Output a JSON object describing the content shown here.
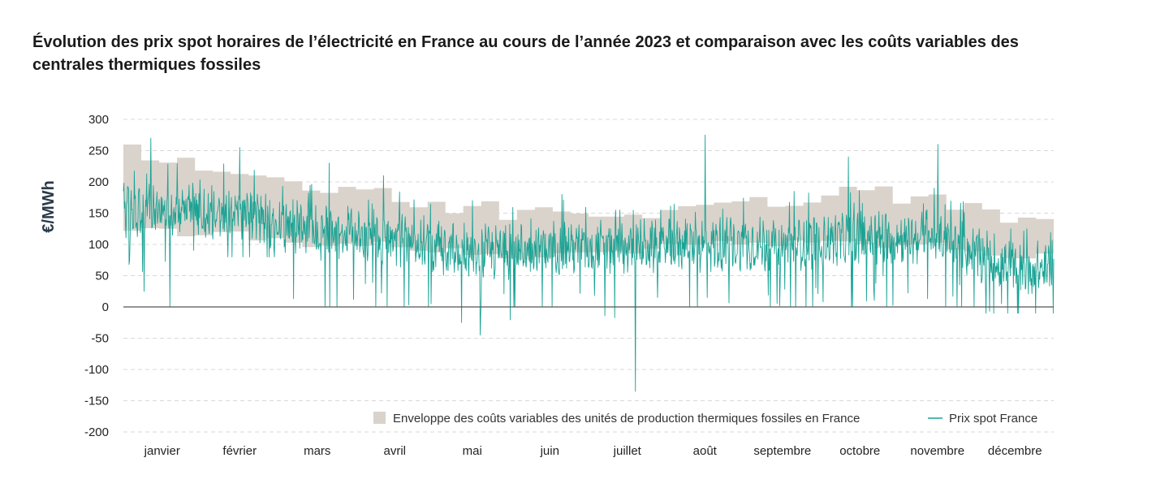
{
  "title": "Évolution des prix spot horaires de l’électricité en France au cours de l’année 2023 et comparaison avec les coûts variables des centrales thermiques fossiles",
  "colors": {
    "envelope": "#d9d3cc",
    "spot": "#1aa394",
    "zero_line": "#555555",
    "grid": "#d8d8d8"
  },
  "chart_data": {
    "type": "area",
    "title": "Évolution des prix spot horaires de l’électricité en France au cours de l’année 2023 et comparaison avec les coûts variables des centrales thermiques fossiles",
    "xlabel": "",
    "ylabel": "€/MWh",
    "ylim": [
      -200,
      300
    ],
    "yticks": [
      300,
      250,
      200,
      150,
      100,
      50,
      0,
      -50,
      -100,
      -150,
      -200
    ],
    "grid": true,
    "legend_position": "bottom-right",
    "x_categories": [
      "janvier",
      "février",
      "mars",
      "avril",
      "mai",
      "juin",
      "juillet",
      "août",
      "septembre",
      "octobre",
      "novembre",
      "décembre"
    ],
    "legend": [
      {
        "label": "Enveloppe des coûts variables des unités de production thermiques fossiles en France",
        "type": "area"
      },
      {
        "label": "Prix spot France",
        "type": "line"
      }
    ],
    "envelope_monthly": {
      "upper": [
        245,
        215,
        195,
        175,
        155,
        150,
        150,
        165,
        175,
        185,
        170,
        135
      ],
      "lower": [
        120,
        115,
        100,
        100,
        85,
        80,
        90,
        100,
        100,
        100,
        100,
        80
      ]
    },
    "spot_monthly": {
      "typical": [
        155,
        150,
        120,
        110,
        85,
        95,
        95,
        100,
        100,
        110,
        110,
        60
      ],
      "max": [
        270,
        255,
        230,
        210,
        170,
        180,
        155,
        275,
        185,
        240,
        260,
        125
      ],
      "min": [
        0,
        80,
        0,
        0,
        -45,
        0,
        -135,
        0,
        0,
        0,
        0,
        -10
      ]
    }
  }
}
